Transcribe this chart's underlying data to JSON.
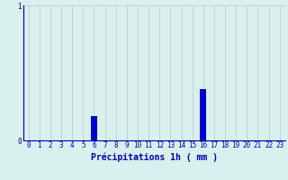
{
  "hours": [
    0,
    1,
    2,
    3,
    4,
    5,
    6,
    7,
    8,
    9,
    10,
    11,
    12,
    13,
    14,
    15,
    16,
    17,
    18,
    19,
    20,
    21,
    22,
    23
  ],
  "values": [
    0,
    0,
    0,
    0,
    0,
    0,
    0.18,
    0,
    0,
    0,
    0,
    0,
    0,
    0,
    0,
    0,
    0.38,
    0,
    0,
    0,
    0,
    0,
    0,
    0
  ],
  "bar_color": "#0000cc",
  "background_color": "#d8f0ee",
  "grid_color": "#b8c8c8",
  "axis_color": "#0000aa",
  "xlabel": "Précipitations 1h ( mm )",
  "ylim": [
    0,
    1.0
  ],
  "xlim": [
    -0.5,
    23.5
  ],
  "yticks": [
    0,
    1
  ],
  "ytick_labels": [
    "0",
    "1"
  ],
  "xlabel_fontsize": 7,
  "tick_fontsize": 5.5
}
